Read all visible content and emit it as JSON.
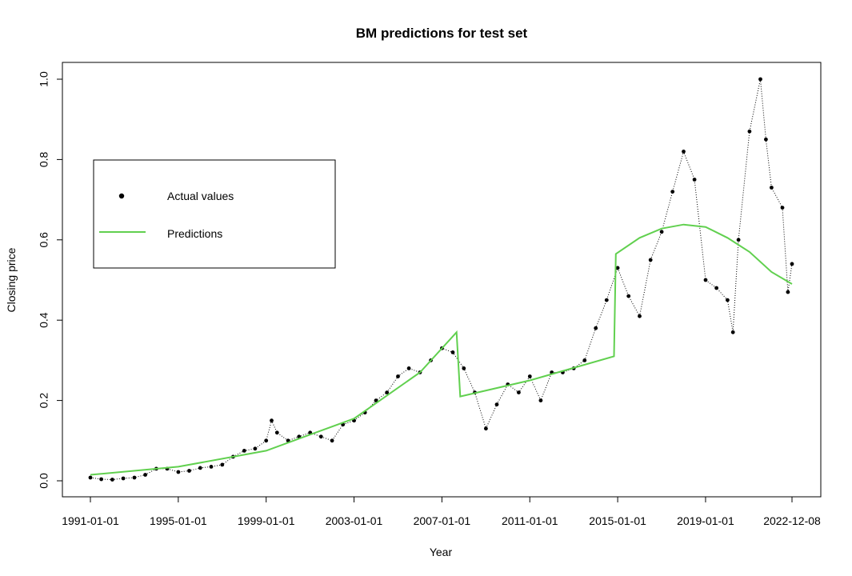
{
  "chart_data": {
    "type": "line",
    "title": "BM predictions for test set",
    "xlabel": "Year",
    "ylabel": "Closing price",
    "x_tick_labels": [
      "1991-01-01",
      "1995-01-01",
      "1999-01-01",
      "2003-01-01",
      "2007-01-01",
      "2011-01-01",
      "2015-01-01",
      "2019-01-01",
      "2022-12-08"
    ],
    "x_tick_dates": [
      "1991-01-01",
      "1995-01-01",
      "1999-01-01",
      "2003-01-01",
      "2007-01-01",
      "2011-01-01",
      "2015-01-01",
      "2019-01-01",
      "2022-12-08"
    ],
    "xlim": [
      "1991-01-01",
      "2022-12-08"
    ],
    "y_tick_labels": [
      "0.0",
      "0.2",
      "0.4",
      "0.6",
      "0.8",
      "1.0"
    ],
    "ylim": [
      0.0,
      1.0
    ],
    "grid": false,
    "legend": {
      "placement": "upper-left",
      "entries": [
        {
          "label": "Actual values",
          "marker": "dot",
          "color": "#000000"
        },
        {
          "label": "Predictions",
          "marker": "line",
          "color": "#61D04F"
        }
      ]
    },
    "series": [
      {
        "name": "Actual values",
        "style": "points-dotted",
        "color": "#000000",
        "points": [
          [
            "1991-01-01",
            0.008
          ],
          [
            "1991-07-01",
            0.004
          ],
          [
            "1992-01-01",
            0.003
          ],
          [
            "1992-07-01",
            0.006
          ],
          [
            "1993-01-01",
            0.008
          ],
          [
            "1993-07-01",
            0.015
          ],
          [
            "1994-01-01",
            0.03
          ],
          [
            "1994-07-01",
            0.03
          ],
          [
            "1995-01-01",
            0.022
          ],
          [
            "1995-07-01",
            0.025
          ],
          [
            "1996-01-01",
            0.032
          ],
          [
            "1996-07-01",
            0.035
          ],
          [
            "1997-01-01",
            0.04
          ],
          [
            "1997-07-01",
            0.06
          ],
          [
            "1998-01-01",
            0.075
          ],
          [
            "1998-07-01",
            0.08
          ],
          [
            "1999-01-01",
            0.1
          ],
          [
            "1999-04-01",
            0.15
          ],
          [
            "1999-07-01",
            0.12
          ],
          [
            "2000-01-01",
            0.1
          ],
          [
            "2000-07-01",
            0.11
          ],
          [
            "2001-01-01",
            0.12
          ],
          [
            "2001-07-01",
            0.11
          ],
          [
            "2002-01-01",
            0.1
          ],
          [
            "2002-07-01",
            0.14
          ],
          [
            "2003-01-01",
            0.15
          ],
          [
            "2003-07-01",
            0.17
          ],
          [
            "2004-01-01",
            0.2
          ],
          [
            "2004-07-01",
            0.22
          ],
          [
            "2005-01-01",
            0.26
          ],
          [
            "2005-07-01",
            0.28
          ],
          [
            "2006-01-01",
            0.27
          ],
          [
            "2006-07-01",
            0.3
          ],
          [
            "2007-01-01",
            0.33
          ],
          [
            "2007-07-01",
            0.32
          ],
          [
            "2008-01-01",
            0.28
          ],
          [
            "2008-07-01",
            0.22
          ],
          [
            "2009-01-01",
            0.13
          ],
          [
            "2009-07-01",
            0.19
          ],
          [
            "2010-01-01",
            0.24
          ],
          [
            "2010-07-01",
            0.22
          ],
          [
            "2011-01-01",
            0.26
          ],
          [
            "2011-07-01",
            0.2
          ],
          [
            "2012-01-01",
            0.27
          ],
          [
            "2012-07-01",
            0.27
          ],
          [
            "2013-01-01",
            0.28
          ],
          [
            "2013-07-01",
            0.3
          ],
          [
            "2014-01-01",
            0.38
          ],
          [
            "2014-07-01",
            0.45
          ],
          [
            "2015-01-01",
            0.53
          ],
          [
            "2015-07-01",
            0.46
          ],
          [
            "2016-01-01",
            0.41
          ],
          [
            "2016-07-01",
            0.55
          ],
          [
            "2017-01-01",
            0.62
          ],
          [
            "2017-07-01",
            0.72
          ],
          [
            "2018-01-01",
            0.82
          ],
          [
            "2018-07-01",
            0.75
          ],
          [
            "2019-01-01",
            0.5
          ],
          [
            "2019-07-01",
            0.48
          ],
          [
            "2020-01-01",
            0.45
          ],
          [
            "2020-04-01",
            0.37
          ],
          [
            "2020-07-01",
            0.6
          ],
          [
            "2021-01-01",
            0.87
          ],
          [
            "2021-07-01",
            1.0
          ],
          [
            "2021-10-01",
            0.85
          ],
          [
            "2022-01-01",
            0.73
          ],
          [
            "2022-07-01",
            0.68
          ],
          [
            "2022-10-01",
            0.47
          ],
          [
            "2022-12-08",
            0.54
          ]
        ]
      },
      {
        "name": "Predictions",
        "style": "line",
        "color": "#61D04F",
        "points": [
          [
            "1991-01-01",
            0.015
          ],
          [
            "1995-01-01",
            0.035
          ],
          [
            "1999-01-01",
            0.075
          ],
          [
            "2003-01-01",
            0.155
          ],
          [
            "2006-01-01",
            0.27
          ],
          [
            "2007-09-01",
            0.37
          ],
          [
            "2007-11-01",
            0.21
          ],
          [
            "2011-01-01",
            0.25
          ],
          [
            "2014-11-01",
            0.31
          ],
          [
            "2014-12-01",
            0.565
          ],
          [
            "2016-01-01",
            0.605
          ],
          [
            "2017-01-01",
            0.628
          ],
          [
            "2018-01-01",
            0.638
          ],
          [
            "2019-01-01",
            0.632
          ],
          [
            "2020-01-01",
            0.605
          ],
          [
            "2021-01-01",
            0.57
          ],
          [
            "2022-01-01",
            0.52
          ],
          [
            "2022-12-08",
            0.49
          ]
        ]
      }
    ]
  }
}
